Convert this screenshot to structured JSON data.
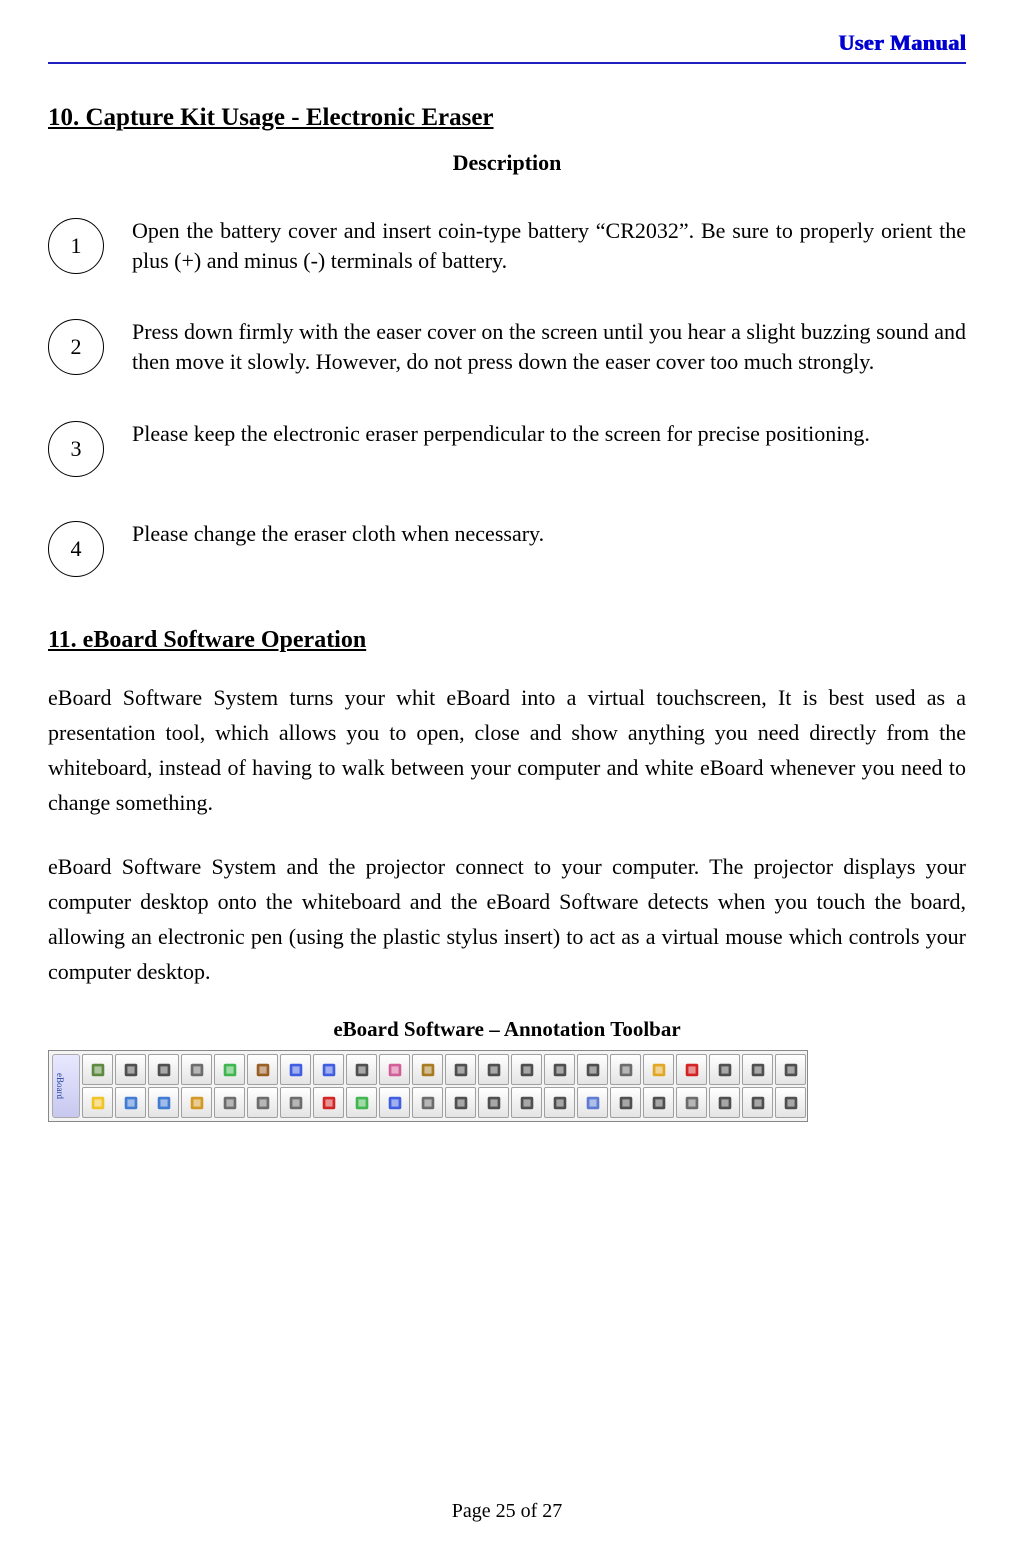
{
  "header": {
    "title": "User Manual",
    "title_color": "#0000d0",
    "rule_color": "#2020c0"
  },
  "section10": {
    "heading": "10. Capture Kit Usage - Electronic Eraser",
    "description_label": "Description",
    "steps": [
      {
        "num": "1",
        "text": "Open the battery cover and insert coin-type battery “CR2032”. Be sure to properly orient the plus (+) and minus (-) terminals of battery."
      },
      {
        "num": "2",
        "text": "Press down firmly with the easer cover on the screen until you hear a slight buzzing sound and then move it slowly. However, do not press down the easer cover too much strongly."
      },
      {
        "num": "3",
        "text": "Please keep the electronic eraser perpendicular to the screen for precise positioning."
      },
      {
        "num": "4",
        "text": "Please change the eraser cloth when necessary."
      }
    ]
  },
  "section11": {
    "heading": "11. eBoard Software Operation",
    "para1": "eBoard Software System turns your whit eBoard into a virtual touchscreen, It is best used as a presentation tool, which allows you to open, close and show anything you need directly from the whiteboard, instead of having to walk between your computer and white eBoard whenever you need to change something.",
    "para2": "eBoard Software System and the projector connect to your computer. The projector displays your computer desktop onto the whiteboard and the eBoard Software detects when you touch the board, allowing an electronic pen (using the plastic stylus insert) to act as a virtual mouse which controls your computer desktop.",
    "subheading": "eBoard Software – Annotation Toolbar"
  },
  "toolbar": {
    "handle_label": "eBoard",
    "row1_colors": [
      "#447722",
      "#333333",
      "#333333",
      "#555555",
      "#22aa33",
      "#884400",
      "#2244dd",
      "#2244dd",
      "#333333",
      "#cc4488",
      "#996600",
      "#333333",
      "#333333",
      "#333333",
      "#333333",
      "#333333",
      "#555555",
      "#dd9900",
      "#cc0000",
      "#333333",
      "#333333",
      "#333333"
    ],
    "row2_colors": [
      "#eebb00",
      "#2266cc",
      "#2266cc",
      "#cc8800",
      "#555555",
      "#555555",
      "#555555",
      "#cc0000",
      "#22aa33",
      "#2244dd",
      "#555555",
      "#333333",
      "#333333",
      "#333333",
      "#333333",
      "#4466cc",
      "#333333",
      "#333333",
      "#555555",
      "#333333",
      "#333333",
      "#333333"
    ]
  },
  "footer": {
    "text": "Page 25 of 27"
  }
}
